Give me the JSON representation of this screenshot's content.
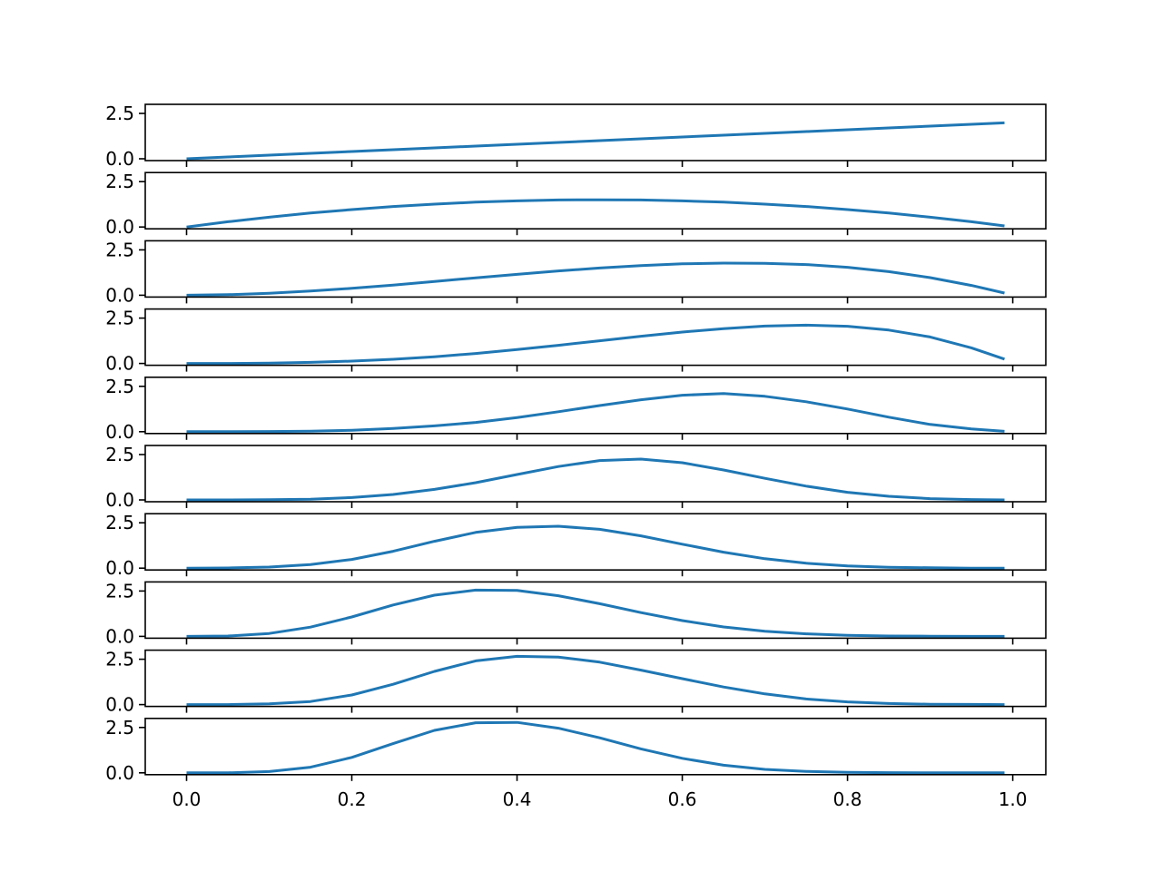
{
  "chart_data": {
    "type": "line",
    "layout": "stacked-subplots",
    "shared_x": true,
    "grid": false,
    "legend": "none",
    "line_color": "#1f77b4",
    "x": [
      0.0,
      0.05,
      0.1,
      0.15,
      0.2,
      0.25,
      0.3,
      0.35,
      0.4,
      0.45,
      0.5,
      0.55,
      0.6,
      0.65,
      0.7,
      0.75,
      0.8,
      0.85,
      0.9,
      0.95,
      0.99
    ],
    "xlim": [
      -0.05,
      1.04
    ],
    "xticks": [
      0.0,
      0.2,
      0.4,
      0.6,
      0.8,
      1.0
    ],
    "xtick_labels": [
      "0.0",
      "0.2",
      "0.4",
      "0.6",
      "0.8",
      "1.0"
    ],
    "ylim": [
      -0.1,
      3.0
    ],
    "yticks": [
      0.0,
      2.5
    ],
    "ytick_labels": [
      "0.0",
      "2.5"
    ],
    "series": [
      {
        "values": [
          0.0,
          0.1,
          0.2,
          0.3,
          0.4,
          0.5,
          0.6,
          0.7,
          0.8,
          0.9,
          1.0,
          1.1,
          1.2,
          1.3,
          1.4,
          1.5,
          1.6,
          1.7,
          1.8,
          1.9,
          1.98
        ]
      },
      {
        "values": [
          0.0,
          0.29,
          0.54,
          0.77,
          0.96,
          1.13,
          1.26,
          1.37,
          1.44,
          1.49,
          1.5,
          1.49,
          1.44,
          1.37,
          1.26,
          1.13,
          0.96,
          0.77,
          0.54,
          0.29,
          0.06
        ]
      },
      {
        "values": [
          0.0,
          0.03,
          0.11,
          0.23,
          0.38,
          0.56,
          0.76,
          0.96,
          1.15,
          1.34,
          1.5,
          1.63,
          1.73,
          1.77,
          1.76,
          1.69,
          1.54,
          1.3,
          0.97,
          0.54,
          0.12
        ]
      },
      {
        "values": [
          0.0,
          0.0,
          0.02,
          0.06,
          0.13,
          0.23,
          0.37,
          0.55,
          0.77,
          1.0,
          1.25,
          1.5,
          1.73,
          1.92,
          2.06,
          2.11,
          2.05,
          1.84,
          1.46,
          0.86,
          0.24
        ]
      },
      {
        "values": [
          0.0,
          0.0,
          0.01,
          0.03,
          0.08,
          0.18,
          0.32,
          0.51,
          0.78,
          1.1,
          1.44,
          1.76,
          2.01,
          2.1,
          1.95,
          1.65,
          1.25,
          0.8,
          0.4,
          0.15,
          0.02
        ]
      },
      {
        "values": [
          0.0,
          0.0,
          0.01,
          0.04,
          0.13,
          0.3,
          0.58,
          0.95,
          1.4,
          1.84,
          2.17,
          2.25,
          2.05,
          1.65,
          1.19,
          0.76,
          0.42,
          0.2,
          0.07,
          0.02,
          0.0
        ]
      },
      {
        "values": [
          0.0,
          0.01,
          0.06,
          0.2,
          0.48,
          0.93,
          1.48,
          1.97,
          2.25,
          2.31,
          2.14,
          1.78,
          1.32,
          0.88,
          0.52,
          0.27,
          0.12,
          0.05,
          0.02,
          0.0,
          0.0
        ]
      },
      {
        "values": [
          0.0,
          0.02,
          0.16,
          0.51,
          1.07,
          1.73,
          2.27,
          2.55,
          2.53,
          2.24,
          1.8,
          1.31,
          0.87,
          0.52,
          0.28,
          0.14,
          0.06,
          0.02,
          0.01,
          0.0,
          0.0
        ]
      },
      {
        "values": [
          0.0,
          0.0,
          0.04,
          0.17,
          0.53,
          1.12,
          1.83,
          2.41,
          2.66,
          2.62,
          2.34,
          1.9,
          1.43,
          0.97,
          0.59,
          0.31,
          0.15,
          0.06,
          0.02,
          0.01,
          0.0
        ]
      },
      {
        "values": [
          0.0,
          0.0,
          0.07,
          0.31,
          0.85,
          1.61,
          2.34,
          2.76,
          2.78,
          2.46,
          1.93,
          1.32,
          0.8,
          0.42,
          0.19,
          0.08,
          0.03,
          0.01,
          0.0,
          0.0,
          0.0
        ]
      }
    ]
  }
}
